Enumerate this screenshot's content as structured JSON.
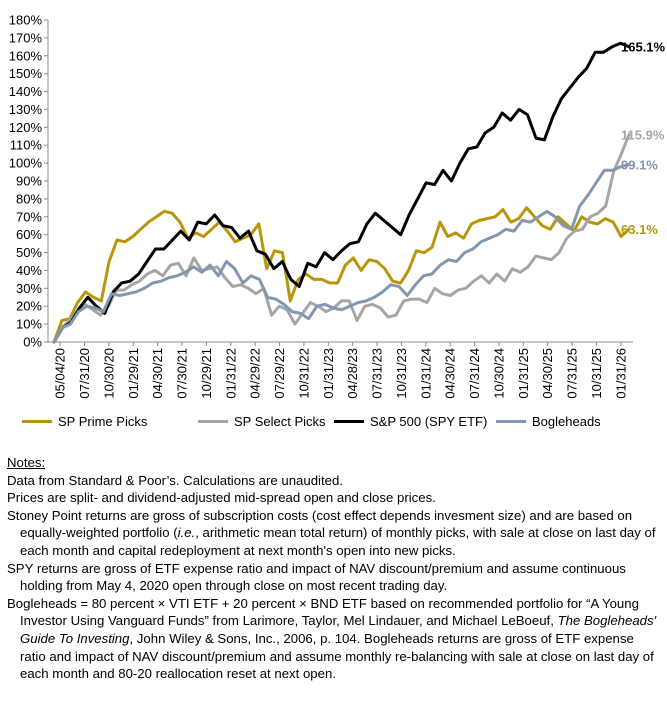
{
  "chart_data": {
    "type": "line",
    "title": "",
    "xlabel": "",
    "ylabel": "",
    "ylim": [
      0,
      180
    ],
    "y_ticks": [
      "0%",
      "10%",
      "20%",
      "30%",
      "40%",
      "50%",
      "60%",
      "70%",
      "80%",
      "90%",
      "100%",
      "110%",
      "120%",
      "130%",
      "140%",
      "150%",
      "160%",
      "170%",
      "180%"
    ],
    "x_tick_labels": [
      "05/04/20",
      "07/31/20",
      "10/30/20",
      "01/29/21",
      "04/30/21",
      "07/30/21",
      "10/29/21",
      "01/31/22",
      "04/29/22",
      "07/29/22",
      "10/31/22",
      "01/31/23",
      "04/28/23",
      "07/31/23",
      "10/31/23",
      "01/31/24",
      "04/30/24",
      "07/31/24",
      "10/30/24",
      "01/31/25",
      "04/30/25",
      "07/31/25",
      "10/31/25",
      "01/31/26"
    ],
    "grid": false,
    "legend_position": "bottom",
    "series": [
      {
        "name": "SP Prime Picks",
        "color": "#B8960C",
        "end_label": "63.1%",
        "values": [
          0,
          12,
          13,
          22,
          28,
          25,
          23,
          45,
          57,
          56,
          59,
          63,
          67,
          70,
          73,
          72,
          67,
          58,
          61,
          59,
          63,
          67,
          62,
          56,
          58,
          60,
          66,
          41,
          51,
          50,
          23,
          35,
          38,
          35,
          35,
          33,
          33,
          43,
          47,
          40,
          46,
          45,
          41,
          34,
          33,
          40,
          51,
          50,
          53,
          67,
          59,
          61,
          58,
          66,
          68,
          69,
          70,
          74,
          67,
          69,
          75,
          70,
          65,
          63,
          70,
          66,
          62,
          70,
          67,
          66,
          69,
          67,
          59,
          63.1
        ]
      },
      {
        "name": "SP Select Picks",
        "color": "#A6A6A6",
        "end_label": "115.9%",
        "values": [
          0,
          8,
          12,
          17,
          21,
          18,
          15,
          20,
          29,
          29,
          32,
          34,
          38,
          40,
          37,
          43,
          44,
          37,
          47,
          40,
          41,
          42,
          36,
          31,
          32,
          30,
          27,
          30,
          15,
          20,
          18,
          10,
          16,
          22,
          20,
          17,
          19,
          23,
          23,
          12,
          20,
          21,
          19,
          14,
          15,
          23,
          24,
          24,
          22,
          30,
          27,
          26,
          29,
          30,
          34,
          37,
          33,
          38,
          34,
          41,
          39,
          42,
          48,
          47,
          46,
          50,
          58,
          62,
          63,
          70,
          72,
          76,
          95,
          105,
          115.9
        ]
      },
      {
        "name": "S&P 500 (SPY ETF)",
        "color": "#000000",
        "end_label": "165.1%",
        "values": [
          0,
          8,
          11,
          19,
          25,
          20,
          16,
          28,
          33,
          34,
          38,
          45,
          52,
          52,
          57,
          62,
          57,
          67,
          66,
          71,
          65,
          64,
          58,
          62,
          51,
          49,
          41,
          45,
          35,
          31,
          44,
          42,
          50,
          46,
          51,
          55,
          56,
          66,
          72,
          68,
          64,
          60,
          71,
          80,
          89,
          88,
          96,
          90,
          100,
          108,
          109,
          117,
          120,
          128,
          124,
          130,
          127,
          114,
          113,
          126,
          136,
          142,
          148,
          153,
          162,
          162,
          165,
          167,
          165.1
        ]
      },
      {
        "name": "Bogleheads",
        "color": "#8497B0",
        "end_label": "99.1%",
        "values": [
          0,
          8,
          10,
          17,
          20,
          19,
          17,
          27,
          26,
          27,
          28,
          30,
          33,
          34,
          36,
          37,
          39,
          42,
          39,
          43,
          37,
          45,
          41,
          33,
          37,
          35,
          25,
          24,
          21,
          17,
          16,
          13,
          20,
          21,
          19,
          18,
          20,
          22,
          23,
          25,
          28,
          32,
          31,
          26,
          32,
          37,
          38,
          43,
          46,
          45,
          50,
          52,
          56,
          58,
          60,
          63,
          62,
          68,
          67,
          70,
          73,
          70,
          65,
          63,
          76,
          82,
          89,
          96,
          96,
          98,
          99.1
        ]
      }
    ]
  },
  "notes": {
    "heading": "Notes:",
    "items": [
      {
        "type": "plain",
        "text": "Data from Standard & Poor’s. Calculations are unaudited."
      },
      {
        "type": "plain",
        "text": "Prices are split- and dividend-adjusted mid-spread open and close prices."
      },
      {
        "type": "stoney",
        "pre": "Stoney Point returns are gross of subscription costs (cost effect depends invesment size) and are based on equally-weighted portfolio (",
        "italic": "i.e.",
        "post": ", arithmetic mean total return) of monthly picks, with sale at close on last day of each month and capital redeployment at next month's open into new picks."
      },
      {
        "type": "plain",
        "text": "SPY returns are gross of ETF expense ratio and impact of NAV discount/premium and assume continuous holding from May 4, 2020 open through close on most recent trading day."
      },
      {
        "type": "bogle",
        "pre": "Bogleheads = 80 percent × VTI ETF + 20 percent × BND ETF based on recommended portfolio for “A Young Investor Using Vanguard Funds” from Larimore, Taylor, Mel Lindauer, and Michael LeBoeuf, ",
        "italic": "The Bogleheads' Guide To Investing",
        "post": ", John Wiley & Sons, Inc., 2006, p. 104. Bogleheads returns are gross of ETF expense ratio and impact of NAV discount/premium and assume monthly re-balancing with sale at close on last day of each month and 80-20 reallocation reset at next open."
      }
    ]
  }
}
